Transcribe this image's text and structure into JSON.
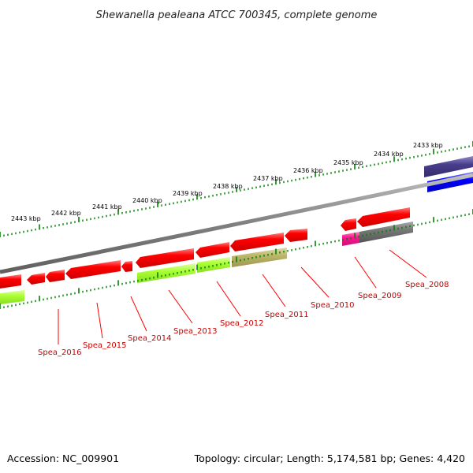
{
  "title": "Shewanella pealeana ATCC 700345, complete genome",
  "footer": {
    "accession": "Accession: NC_009901",
    "summary": "Topology: circular; Length: 5,174,581 bp; Genes: 4,420"
  },
  "scale_labels": [
    "2443 kbp",
    "2442 kbp",
    "2441 kbp",
    "2440 kbp",
    "2439 kbp",
    "2438 kbp",
    "2437 kbp",
    "2436 kbp",
    "2435 kbp",
    "2434 kbp",
    "2433 kbp"
  ],
  "gene_labels": [
    "Spea_2016",
    "Spea_2015",
    "Spea_2014",
    "Spea_2013",
    "Spea_2012",
    "Spea_2011",
    "Spea_2010",
    "Spea_2009",
    "Spea_2008"
  ],
  "colors": {
    "cds": "#ff0000",
    "cog_green": "#aaff33",
    "cog_olive": "#bdb76b",
    "cog_magenta": "#ff1493",
    "cog_gray": "#777777",
    "cog_navy": "#483d8b",
    "cog_blue": "#0000ff",
    "backbone": "#808080",
    "ticks": "#008000",
    "label_line": "#ff0000"
  }
}
